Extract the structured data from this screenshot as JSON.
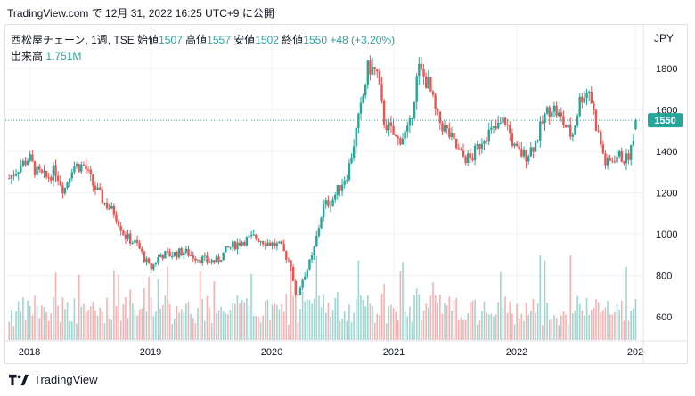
{
  "header": {
    "text": "TradingView.com で 12月 31, 2022 16:25 UTC+9 に公開"
  },
  "legend": {
    "symbol": "西松屋チェーン, 1週, TSE",
    "open_label": "始値",
    "open": "1507",
    "high_label": "高値",
    "high": "1557",
    "low_label": "安値",
    "low": "1502",
    "close_label": "終値",
    "close": "1550",
    "change": "+48 (+3.20%)"
  },
  "volume_legend": {
    "label": "出来高",
    "value": "1.751M"
  },
  "currency": "JPY",
  "footer": {
    "brand": "TradingView"
  },
  "colors": {
    "up": "#26a69a",
    "down": "#ef5350",
    "grid": "#f0f3fa",
    "price_line": "#26a69a"
  },
  "chart_data": {
    "type": "candlestick",
    "interval": "1週",
    "x_ticks": [
      "2018",
      "2019",
      "2020",
      "2021",
      "2022",
      "202"
    ],
    "y_ticks": [
      600,
      800,
      1000,
      1200,
      1400,
      1600,
      1800
    ],
    "ylim": [
      520,
      1880
    ],
    "last_price": "1550",
    "grid": true,
    "anchors": [
      [
        "2017-11-01",
        1270
      ],
      [
        "2017-11-28",
        1320
      ],
      [
        "2017-12-31",
        1370
      ],
      [
        "2018-01-20",
        1300
      ],
      [
        "2018-02-20",
        1270
      ],
      [
        "2018-03-20",
        1310
      ],
      [
        "2018-04-15",
        1210
      ],
      [
        "2018-05-10",
        1330
      ],
      [
        "2018-06-15",
        1330
      ],
      [
        "2018-07-10",
        1240
      ],
      [
        "2018-08-15",
        1150
      ],
      [
        "2018-09-15",
        1100
      ],
      [
        "2018-10-15",
        990
      ],
      [
        "2018-11-20",
        950
      ],
      [
        "2018-12-30",
        830
      ],
      [
        "2019-01-30",
        900
      ],
      [
        "2019-03-01",
        900
      ],
      [
        "2019-04-10",
        915
      ],
      [
        "2019-05-15",
        890
      ],
      [
        "2019-06-20",
        870
      ],
      [
        "2019-07-20",
        870
      ],
      [
        "2019-08-20",
        930
      ],
      [
        "2019-09-30",
        965
      ],
      [
        "2019-11-10",
        985
      ],
      [
        "2019-12-15",
        960
      ],
      [
        "2020-01-25",
        940
      ],
      [
        "2020-02-28",
        850
      ],
      [
        "2020-03-12",
        680
      ],
      [
        "2020-03-31",
        780
      ],
      [
        "2020-05-01",
        890
      ],
      [
        "2020-06-01",
        1130
      ],
      [
        "2020-07-01",
        1170
      ],
      [
        "2020-08-15",
        1300
      ],
      [
        "2020-09-25",
        1620
      ],
      [
        "2020-10-15",
        1810
      ],
      [
        "2020-11-10",
        1780
      ],
      [
        "2020-12-01",
        1550
      ],
      [
        "2021-01-10",
        1450
      ],
      [
        "2021-02-15",
        1500
      ],
      [
        "2021-03-15",
        1800
      ],
      [
        "2021-04-15",
        1720
      ],
      [
        "2021-05-10",
        1560
      ],
      [
        "2021-06-15",
        1480
      ],
      [
        "2021-07-20",
        1380
      ],
      [
        "2021-08-20",
        1360
      ],
      [
        "2021-09-30",
        1480
      ],
      [
        "2021-10-30",
        1500
      ],
      [
        "2021-12-01",
        1550
      ],
      [
        "2022-01-01",
        1400
      ],
      [
        "2022-02-01",
        1380
      ],
      [
        "2022-03-01",
        1440
      ],
      [
        "2022-03-30",
        1570
      ],
      [
        "2022-04-20",
        1620
      ],
      [
        "2022-05-20",
        1550
      ],
      [
        "2022-06-20",
        1470
      ],
      [
        "2022-07-15",
        1660
      ],
      [
        "2022-08-10",
        1700
      ],
      [
        "2022-09-01",
        1520
      ],
      [
        "2022-09-30",
        1330
      ],
      [
        "2022-11-01",
        1380
      ],
      [
        "2022-12-01",
        1360
      ],
      [
        "2022-12-20",
        1430
      ],
      [
        "2022-12-31",
        1550
      ]
    ],
    "volume_note": "weekly volume bars, same color as candle"
  }
}
